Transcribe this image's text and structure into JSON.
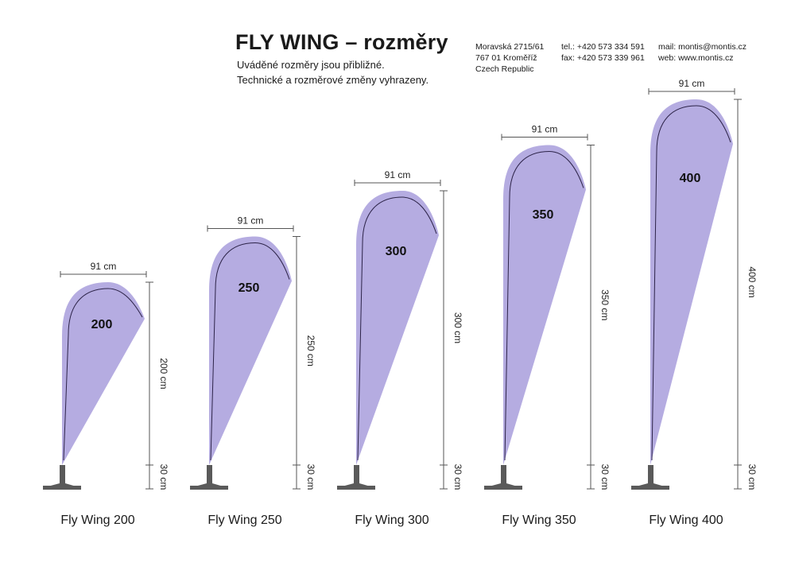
{
  "header": {
    "title": "FLY WING – rozměry",
    "subtitle_1": "Uváděné rozměry jsou přibližné.",
    "subtitle_2": "Technické a rozměrové změny vyhrazeny."
  },
  "contact": {
    "address_line_1": "Moravská 2715/61",
    "address_line_2": "767 01 Kroměříž",
    "address_line_3": "Czech Republic",
    "tel": "tel.: +420 573 334 591",
    "fax": "fax: +420 573 339 961",
    "mail": "mail: montis@montis.cz",
    "web": "web: www.montis.cz"
  },
  "colors": {
    "flag_fill": "#b5ace1",
    "flag_line": "#2c2348",
    "pole": "#5a5a5a",
    "dimension_line": "#555555"
  },
  "flags": [
    {
      "model_name": "Fly Wing 200",
      "flag_label": "200",
      "width_label": "91 cm",
      "height_label": "200 cm",
      "base_label": "30 cm",
      "height_cm": 200
    },
    {
      "model_name": "Fly Wing 250",
      "flag_label": "250",
      "width_label": "91 cm",
      "height_label": "250 cm",
      "base_label": "30 cm",
      "height_cm": 250
    },
    {
      "model_name": "Fly Wing 300",
      "flag_label": "300",
      "width_label": "91 cm",
      "height_label": "300 cm",
      "base_label": "30 cm",
      "height_cm": 300
    },
    {
      "model_name": "Fly Wing 350",
      "flag_label": "350",
      "width_label": "91 cm",
      "height_label": "350 cm",
      "base_label": "30 cm",
      "height_cm": 350
    },
    {
      "model_name": "Fly Wing 400",
      "flag_label": "400",
      "width_label": "91 cm",
      "height_label": "400 cm",
      "base_label": "30 cm",
      "height_cm": 400
    }
  ]
}
